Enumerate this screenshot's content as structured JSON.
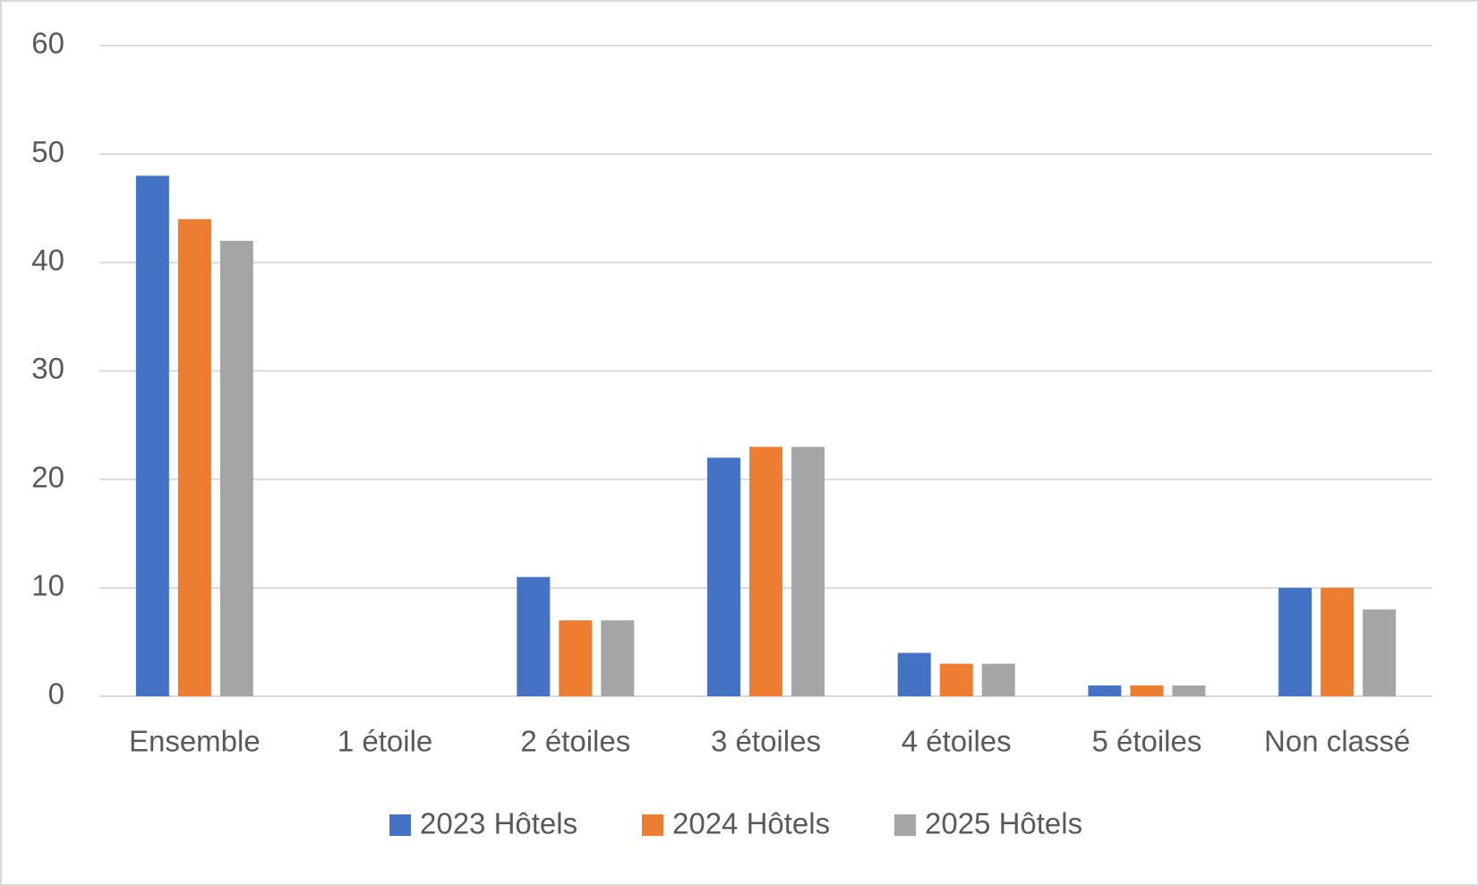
{
  "chart_data": {
    "type": "bar",
    "categories": [
      "Ensemble",
      "1 étoile",
      "2 étoiles",
      "3 étoiles",
      "4 étoiles",
      "5 étoiles",
      "Non classé"
    ],
    "series": [
      {
        "name": "2023 Hôtels",
        "color": "#4472c4",
        "values": [
          48,
          0,
          11,
          22,
          4,
          1,
          10
        ]
      },
      {
        "name": "2024 Hôtels",
        "color": "#ed7d31",
        "values": [
          44,
          0,
          7,
          23,
          3,
          1,
          10
        ]
      },
      {
        "name": "2025 Hôtels",
        "color": "#a5a5a5",
        "values": [
          42,
          0,
          7,
          23,
          3,
          1,
          8
        ]
      }
    ],
    "ylim": [
      0,
      60
    ],
    "yticks": [
      0,
      10,
      20,
      30,
      40,
      50,
      60
    ],
    "grid": true,
    "legend": "bottom"
  }
}
